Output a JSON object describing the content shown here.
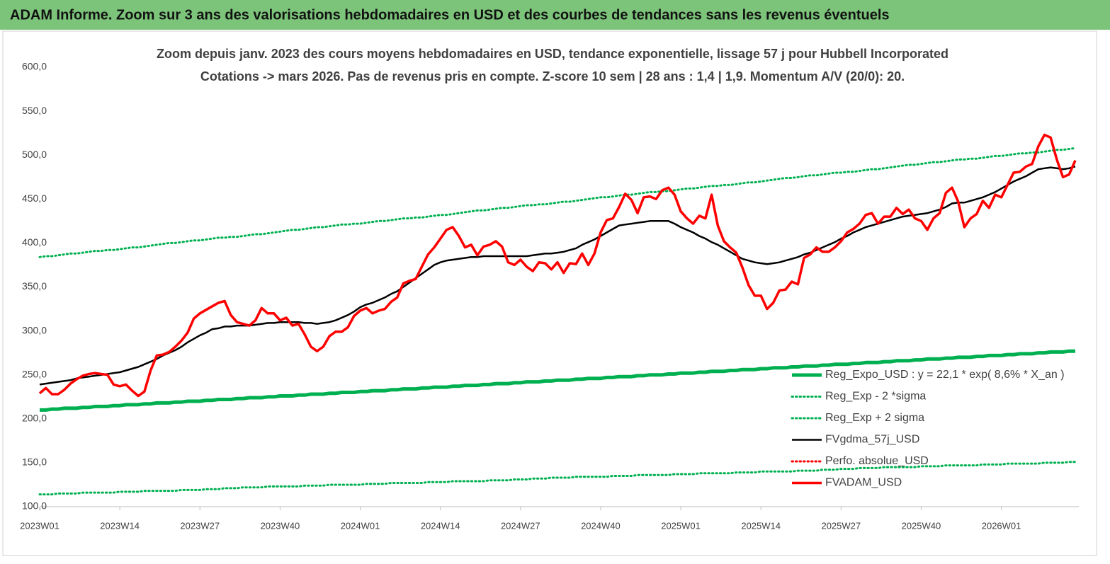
{
  "chart_data": {
    "type": "line",
    "title": "ADAM Informe. Zoom sur 3 ans des valorisations hebdomadaires en USD et des courbes de tendances sans les revenus éventuels",
    "subtitle": [
      "Zoom depuis janv. 2023 des cours moyens hebdomadaires en USD, tendance exponentielle, lissage 57 j pour Hubbell Incorporated",
      "Cotations -> mars 2026. Pas de revenus pris en compte. Z-score 10 sem  | 28 ans : 1,4 | 1,9. Momentum A/V (20/0): 20."
    ],
    "categories": [
      "2023W01",
      null,
      null,
      null,
      null,
      null,
      null,
      null,
      null,
      null,
      null,
      null,
      null,
      "2023W14",
      null,
      null,
      null,
      null,
      null,
      null,
      null,
      null,
      null,
      null,
      null,
      null,
      "2023W27",
      null,
      null,
      null,
      null,
      null,
      null,
      null,
      null,
      null,
      null,
      null,
      null,
      "2023W40",
      null,
      null,
      null,
      null,
      null,
      null,
      null,
      null,
      null,
      null,
      null,
      null,
      "2024W01",
      null,
      null,
      null,
      null,
      null,
      null,
      null,
      null,
      null,
      null,
      null,
      null,
      "2024W14",
      null,
      null,
      null,
      null,
      null,
      null,
      null,
      null,
      null,
      null,
      null,
      null,
      "2024W27",
      null,
      null,
      null,
      null,
      null,
      null,
      null,
      null,
      null,
      null,
      null,
      null,
      "2024W40",
      null,
      null,
      null,
      null,
      null,
      null,
      null,
      null,
      null,
      null,
      null,
      null,
      "2025W01",
      null,
      null,
      null,
      null,
      null,
      null,
      null,
      null,
      null,
      null,
      null,
      null,
      "2025W14",
      null,
      null,
      null,
      null,
      null,
      null,
      null,
      null,
      null,
      null,
      null,
      null,
      "2025W27",
      null,
      null,
      null,
      null,
      null,
      null,
      null,
      null,
      null,
      null,
      null,
      null,
      "2025W40",
      null,
      null,
      null,
      null,
      null,
      null,
      null,
      null,
      null,
      null,
      null,
      null,
      "2026W01",
      null,
      null,
      null,
      null,
      null,
      null,
      null,
      null,
      null,
      null,
      null,
      null
    ],
    "ylim": [
      100,
      600
    ],
    "yticks": [
      {
        "value": 100,
        "label": "100,0"
      },
      {
        "value": 150,
        "label": "150,0"
      },
      {
        "value": 200,
        "label": "200,0"
      },
      {
        "value": 250,
        "label": "250,0"
      },
      {
        "value": 300,
        "label": "300,0"
      },
      {
        "value": 350,
        "label": "350,0"
      },
      {
        "value": 400,
        "label": "400,0"
      },
      {
        "value": 450,
        "label": "450,0"
      },
      {
        "value": 500,
        "label": "500,0"
      },
      {
        "value": 550,
        "label": "550,0"
      },
      {
        "value": 600,
        "label": "600,0"
      }
    ],
    "grid": false,
    "series": [
      {
        "name": "Reg_Expo_USD : y = 22,1 * exp( 8,6% *  X_an )",
        "color": "#00b050",
        "line_style": "solid",
        "values": [
          210,
          210,
          211,
          211,
          212,
          212,
          212,
          213,
          213,
          214,
          214,
          214,
          215,
          215,
          216,
          216,
          216,
          217,
          217,
          218,
          218,
          218,
          219,
          219,
          220,
          220,
          220,
          221,
          221,
          222,
          222,
          222,
          223,
          223,
          224,
          224,
          224,
          225,
          225,
          226,
          226,
          226,
          227,
          227,
          228,
          228,
          228,
          229,
          229,
          230,
          230,
          230,
          231,
          231,
          232,
          232,
          232,
          233,
          233,
          234,
          234,
          234,
          235,
          235,
          236,
          236,
          236,
          237,
          237,
          238,
          238,
          238,
          239,
          239,
          240,
          240,
          240,
          241,
          241,
          242,
          242,
          242,
          243,
          243,
          244,
          244,
          244,
          245,
          245,
          246,
          246,
          246,
          247,
          247,
          248,
          248,
          248,
          249,
          249,
          250,
          250,
          250,
          251,
          251,
          252,
          252,
          252,
          253,
          253,
          254,
          254,
          254,
          255,
          255,
          256,
          256,
          256,
          257,
          257,
          258,
          258,
          258,
          259,
          259,
          260,
          260,
          260,
          261,
          261,
          262,
          262,
          262,
          263,
          263,
          264,
          264,
          264,
          265,
          265,
          266,
          266,
          266,
          267,
          267,
          268,
          268,
          268,
          269,
          269,
          270,
          270,
          270,
          271,
          271,
          272,
          272,
          272,
          273,
          273,
          274,
          274,
          274,
          275,
          275,
          276,
          276,
          276,
          277,
          277
        ]
      },
      {
        "name": "Reg_Exp - 2 *sigma",
        "color": "#00b050",
        "line_style": "dotted",
        "values": [
          114,
          114,
          114,
          115,
          115,
          115,
          115,
          116,
          116,
          116,
          116,
          116,
          116,
          117,
          117,
          117,
          117,
          118,
          118,
          118,
          118,
          118,
          118,
          119,
          119,
          119,
          119,
          120,
          120,
          120,
          121,
          121,
          121,
          122,
          122,
          122,
          122,
          123,
          123,
          123,
          123,
          123,
          123,
          124,
          124,
          124,
          124,
          125,
          125,
          125,
          125,
          125,
          125,
          126,
          126,
          126,
          126,
          127,
          127,
          127,
          127,
          127,
          127,
          128,
          128,
          128,
          128,
          129,
          129,
          129,
          129,
          129,
          129,
          130,
          130,
          130,
          130,
          131,
          131,
          131,
          132,
          132,
          132,
          133,
          133,
          133,
          133,
          134,
          134,
          134,
          134,
          134,
          134,
          135,
          135,
          135,
          135,
          136,
          136,
          136,
          136,
          136,
          136,
          137,
          137,
          137,
          137,
          138,
          138,
          138,
          138,
          138,
          138,
          139,
          139,
          139,
          139,
          140,
          140,
          140,
          140,
          140,
          140,
          141,
          141,
          141,
          141,
          142,
          142,
          142,
          143,
          143,
          143,
          144,
          144,
          144,
          144,
          145,
          145,
          145,
          145,
          145,
          145,
          146,
          146,
          146,
          146,
          147,
          147,
          147,
          147,
          147,
          147,
          148,
          148,
          148,
          148,
          149,
          149,
          149,
          149,
          149,
          149,
          150,
          150,
          150,
          150,
          151,
          151
        ]
      },
      {
        "name": "Reg_Exp + 2 sigma",
        "color": "#00b050",
        "line_style": "dotted",
        "values": [
          384,
          385,
          385,
          386,
          387,
          388,
          388,
          389,
          390,
          391,
          391,
          392,
          392,
          393,
          394,
          395,
          395,
          396,
          397,
          398,
          399,
          400,
          400,
          401,
          402,
          403,
          403,
          404,
          405,
          406,
          406,
          407,
          407,
          408,
          409,
          410,
          410,
          411,
          412,
          413,
          414,
          415,
          415,
          416,
          417,
          418,
          418,
          419,
          420,
          421,
          421,
          422,
          422,
          423,
          424,
          425,
          425,
          426,
          427,
          428,
          428,
          429,
          429,
          430,
          431,
          432,
          432,
          433,
          434,
          435,
          436,
          437,
          437,
          438,
          439,
          440,
          440,
          441,
          442,
          443,
          443,
          444,
          444,
          445,
          446,
          447,
          447,
          448,
          449,
          450,
          451,
          452,
          452,
          453,
          454,
          455,
          455,
          456,
          457,
          458,
          458,
          459,
          459,
          460,
          461,
          462,
          462,
          463,
          464,
          465,
          465,
          466,
          466,
          467,
          468,
          469,
          469,
          470,
          471,
          472,
          473,
          474,
          474,
          475,
          476,
          477,
          477,
          478,
          479,
          480,
          480,
          481,
          481,
          482,
          483,
          484,
          484,
          485,
          486,
          487,
          488,
          489,
          489,
          490,
          491,
          492,
          492,
          493,
          494,
          495,
          495,
          496,
          496,
          497,
          498,
          499,
          499,
          500,
          501,
          502,
          502,
          503,
          503,
          504,
          505,
          506,
          506,
          507,
          508
        ]
      },
      {
        "name": "FVgdma_57j_USD",
        "color": "#000000",
        "line_style": "solid",
        "values": [
          239,
          240,
          241,
          242,
          243,
          244,
          246,
          247,
          248,
          249,
          250,
          251,
          252,
          253,
          255,
          257,
          259,
          262,
          265,
          268,
          272,
          275,
          278,
          282,
          287,
          291,
          295,
          298,
          302,
          303,
          305,
          305,
          306,
          306,
          306,
          307,
          308,
          309,
          309,
          310,
          310,
          310,
          310,
          309,
          309,
          308,
          309,
          310,
          312,
          315,
          318,
          322,
          327,
          330,
          332,
          335,
          338,
          342,
          345,
          350,
          355,
          360,
          365,
          370,
          375,
          378,
          380,
          381,
          382,
          383,
          384,
          384,
          385,
          385,
          385,
          385,
          385,
          385,
          385,
          385,
          386,
          387,
          388,
          388,
          389,
          390,
          392,
          394,
          398,
          401,
          404,
          408,
          412,
          416,
          420,
          421,
          422,
          423,
          424,
          425,
          425,
          425,
          425,
          422,
          418,
          415,
          412,
          408,
          405,
          401,
          398,
          394,
          390,
          386,
          382,
          380,
          378,
          377,
          376,
          377,
          378,
          380,
          382,
          384,
          387,
          389,
          392,
          395,
          398,
          401,
          405,
          408,
          412,
          415,
          418,
          420,
          422,
          424,
          426,
          428,
          430,
          431,
          432,
          433,
          434,
          436,
          438,
          441,
          445,
          446,
          446,
          448,
          450,
          452,
          455,
          458,
          462,
          466,
          470,
          473,
          476,
          480,
          484,
          485,
          486,
          485,
          484,
          485,
          487
        ]
      },
      {
        "name": "Perfo. absolue_USD",
        "color": "#ff0000",
        "line_style": "dotted"
      },
      {
        "name": "FVADAM_USD",
        "color": "#ff0000",
        "line_style": "solid",
        "values": [
          229,
          235,
          228,
          228,
          233,
          240,
          245,
          249,
          251,
          252,
          251,
          250,
          239,
          237,
          239,
          232,
          226,
          231,
          255,
          272,
          273,
          276,
          282,
          289,
          298,
          314,
          320,
          324,
          328,
          332,
          334,
          318,
          310,
          308,
          306,
          312,
          326,
          320,
          320,
          312,
          315,
          306,
          308,
          296,
          282,
          277,
          282,
          294,
          299,
          299,
          304,
          317,
          323,
          326,
          320,
          323,
          325,
          333,
          338,
          354,
          357,
          359,
          373,
          387,
          395,
          405,
          415,
          418,
          408,
          395,
          398,
          386,
          396,
          398,
          402,
          396,
          378,
          375,
          381,
          373,
          368,
          378,
          377,
          370,
          378,
          366,
          377,
          376,
          388,
          375,
          388,
          412,
          426,
          428,
          441,
          456,
          449,
          434,
          452,
          453,
          450,
          460,
          463,
          455,
          436,
          428,
          422,
          431,
          428,
          455,
          420,
          402,
          395,
          389,
          372,
          352,
          340,
          340,
          325,
          332,
          346,
          347,
          356,
          353,
          383,
          387,
          395,
          390,
          390,
          395,
          402,
          412,
          416,
          422,
          432,
          434,
          422,
          430,
          430,
          440,
          433,
          438,
          428,
          425,
          415,
          428,
          434,
          457,
          463,
          447,
          418,
          428,
          433,
          448,
          440,
          455,
          452,
          466,
          480,
          481,
          487,
          490,
          510,
          523,
          520,
          495,
          475,
          478,
          494
        ]
      }
    ]
  }
}
